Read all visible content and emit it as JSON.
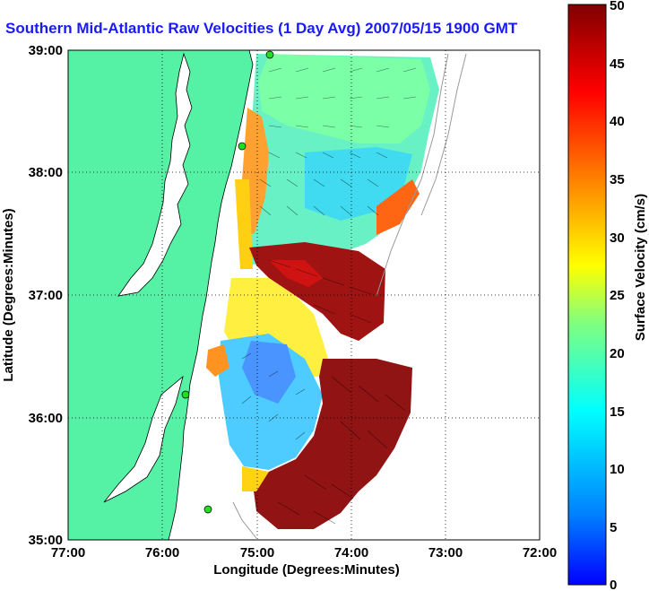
{
  "title": "Southern Mid-Atlantic Raw Velocities (1 Day Avg) 2007/05/15 1900 GMT",
  "x_axis": {
    "label": "Longitude (Degrees:Minutes)",
    "ticks": [
      "77:00",
      "76:00",
      "75:00",
      "74:00",
      "73:00",
      "72:00"
    ]
  },
  "y_axis": {
    "label": "Latitude (Degrees:Minutes)",
    "ticks": [
      "39:00",
      "38:00",
      "37:00",
      "36:00",
      "35:00"
    ]
  },
  "colorbar": {
    "label": "Surface Velocity (cm/s)",
    "ticks": [
      "50",
      "45",
      "40",
      "35",
      "30",
      "25",
      "20",
      "15",
      "10",
      "5",
      "0"
    ]
  },
  "colors": {
    "land": "#55f2a6",
    "title": "#1a1aff",
    "station": "#22dd22"
  },
  "chart_data": {
    "type": "heatmap",
    "xlim": [
      -77,
      -72
    ],
    "ylim": [
      35,
      39
    ],
    "clim": [
      0,
      50
    ],
    "colormap": "jet",
    "stations": [
      {
        "lon": -74.88,
        "lat": 38.98
      },
      {
        "lon": -75.1,
        "lat": 38.22
      },
      {
        "lon": -75.75,
        "lat": 36.18
      },
      {
        "lon": -75.5,
        "lat": 35.25
      }
    ],
    "velocity_regions": [
      {
        "zone": "north",
        "mean_speed": 15
      },
      {
        "zone": "central-east",
        "mean_speed": 45
      },
      {
        "zone": "southwest",
        "mean_speed": 10
      },
      {
        "zone": "south",
        "mean_speed": 48
      }
    ]
  }
}
